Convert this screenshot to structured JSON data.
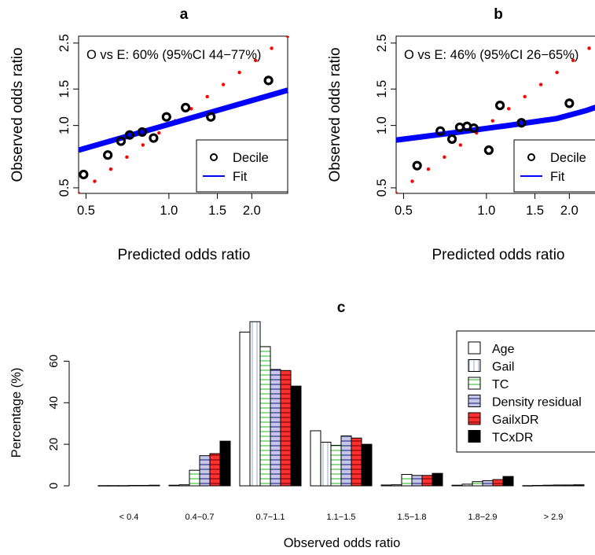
{
  "chart_data": [
    {
      "panel": "a",
      "type": "scatter",
      "title": "a",
      "xlabel": "Predicted odds ratio",
      "ylabel": "Observed odds ratio",
      "scale": "log",
      "xlim": [
        0.47,
        2.7
      ],
      "ylim": [
        0.47,
        2.7
      ],
      "x_ticks": [
        "0.5",
        "1.0",
        "1.5",
        "2.0"
      ],
      "x_tick_values": [
        0.5,
        1.0,
        1.5,
        2.0
      ],
      "y_ticks": [
        "0.5",
        "1.0",
        "1.5",
        "2.5"
      ],
      "y_tick_values": [
        0.5,
        1.0,
        1.5,
        2.5
      ],
      "annotation": "O vs E: 60% (95%CI 44−77%)",
      "legend": {
        "placement": "bottom-right",
        "entries": [
          "Decile",
          "Fit"
        ]
      },
      "series": [
        {
          "name": "Decile",
          "kind": "points",
          "x": [
            0.49,
            0.6,
            0.67,
            0.72,
            0.8,
            0.88,
            0.98,
            1.15,
            1.42,
            2.3
          ],
          "y": [
            0.58,
            0.72,
            0.84,
            0.9,
            0.93,
            0.87,
            1.1,
            1.22,
            1.1,
            1.65
          ]
        },
        {
          "name": "Fit",
          "kind": "line",
          "color": "#0000ff",
          "x": [
            0.47,
            2.7
          ],
          "y": [
            0.76,
            1.48
          ]
        },
        {
          "kind": "identity",
          "color": "#ff0000",
          "x": [
            0.47,
            2.7
          ],
          "y": [
            0.47,
            2.7
          ]
        }
      ]
    },
    {
      "panel": "b",
      "type": "scatter",
      "title": "b",
      "xlabel": "Predicted odds ratio",
      "ylabel": "Observed odds ratio",
      "scale": "log",
      "xlim": [
        0.47,
        2.7
      ],
      "ylim": [
        0.47,
        2.7
      ],
      "x_ticks": [
        "0.5",
        "1.0",
        "1.5",
        "2.0"
      ],
      "x_tick_values": [
        0.5,
        1.0,
        1.5,
        2.0
      ],
      "y_ticks": [
        "0.5",
        "1.0",
        "1.5",
        "2.5"
      ],
      "y_tick_values": [
        0.5,
        1.0,
        1.5,
        2.5
      ],
      "annotation": "O vs E: 46% (95%CI 26−65%)",
      "legend": {
        "placement": "bottom-right",
        "entries": [
          "Decile",
          "Fit"
        ]
      },
      "series": [
        {
          "name": "Decile",
          "kind": "points",
          "x": [
            0.56,
            0.68,
            0.75,
            0.8,
            0.85,
            0.9,
            1.02,
            1.12,
            1.34,
            2.0
          ],
          "y": [
            0.64,
            0.94,
            0.86,
            0.98,
            0.99,
            0.97,
            0.76,
            1.25,
            1.03,
            1.28
          ]
        },
        {
          "name": "Fit",
          "kind": "line",
          "color": "#0000ff",
          "x": [
            0.47,
            0.8,
            1.2,
            1.8,
            2.3,
            2.7
          ],
          "y": [
            0.85,
            0.93,
            1.0,
            1.08,
            1.18,
            1.27
          ]
        },
        {
          "kind": "identity",
          "color": "#ff0000",
          "x": [
            0.47,
            2.7
          ],
          "y": [
            0.47,
            2.7
          ]
        }
      ]
    },
    {
      "panel": "c",
      "type": "bar",
      "title": "c",
      "xlabel": "Observed odds ratio",
      "ylabel": "Percentage (%)",
      "ylim": [
        0,
        70
      ],
      "y_ticks": [
        "0",
        "20",
        "40",
        "60"
      ],
      "y_tick_values": [
        0,
        20,
        40,
        60
      ],
      "categories": [
        "< 0.4",
        "0.4−0.7",
        "0.7−1.1",
        "1.1−1.5",
        "1.5−1.8",
        "1.8−2.9",
        "> 2.9"
      ],
      "legend": {
        "placement": "top-right"
      },
      "series": [
        {
          "name": "Age",
          "fill": "#ffffff",
          "pattern": "none",
          "values": [
            0.1,
            0.3,
            74,
            26.5,
            0.4,
            0.3,
            0.1
          ]
        },
        {
          "name": "Gail",
          "fill": "#ffffff",
          "pattern": "vertical",
          "line_color": "#9aa9c8",
          "values": [
            0.1,
            0.5,
            79,
            21,
            0.5,
            0.8,
            0.2
          ]
        },
        {
          "name": "TC",
          "fill": "#ffffff",
          "pattern": "horizontal",
          "line_color": "#22bb22",
          "values": [
            0.1,
            7.5,
            67,
            19.5,
            5.5,
            2.0,
            0.3
          ]
        },
        {
          "name": "Density residual",
          "fill": "#c4c7e8",
          "pattern": "horizontal",
          "line_color": "#1a1a80",
          "values": [
            0.2,
            14.5,
            56,
            24,
            5,
            2.5,
            0.4
          ]
        },
        {
          "name": "GailxDR",
          "fill": "#ff3030",
          "pattern": "horizontal",
          "line_color": "#600000",
          "values": [
            0.2,
            15.5,
            55.5,
            23,
            5,
            3,
            0.4
          ]
        },
        {
          "name": "TCxDR",
          "fill": "#000000",
          "pattern": "none",
          "values": [
            0.3,
            21.5,
            48,
            20,
            6,
            4.5,
            0.5
          ]
        }
      ]
    }
  ]
}
